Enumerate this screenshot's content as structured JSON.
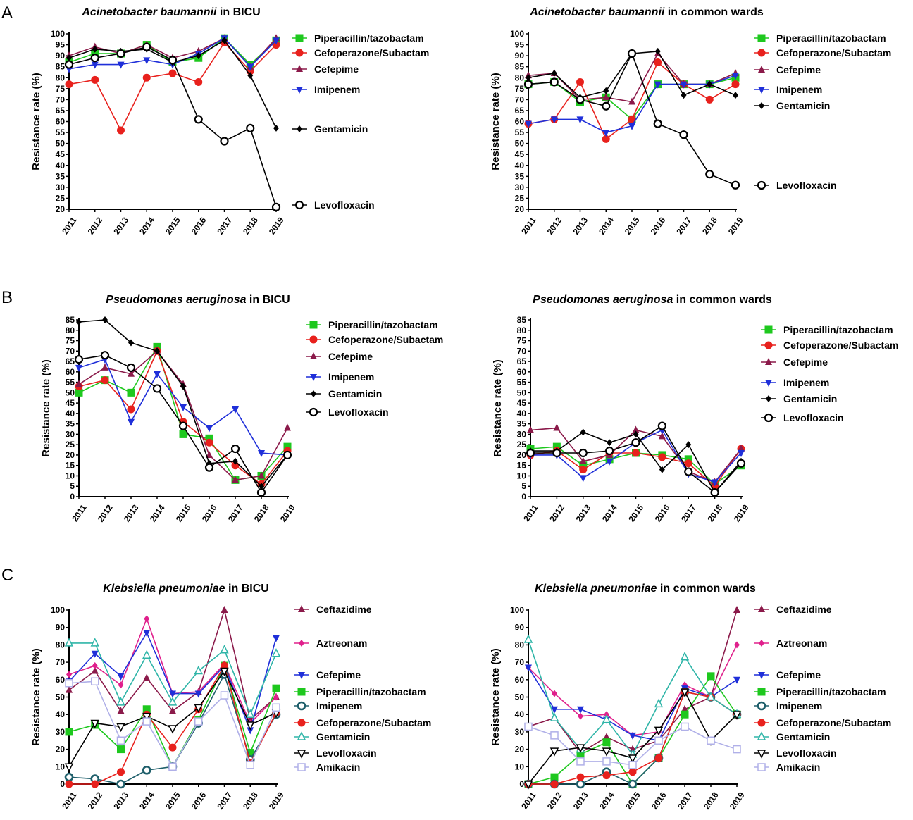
{
  "panel_labels": [
    "A",
    "B",
    "C"
  ],
  "chart_data": [
    {
      "type": "line",
      "panel": "A",
      "title_species": "Acinetobacter baumannii",
      "title_rest": " in BICU",
      "ylabel": "Resistance rate (%)",
      "ylim": [
        20,
        100
      ],
      "ytick_step": 5,
      "categories": [
        "2011",
        "2012",
        "2013",
        "2014",
        "2015",
        "2016",
        "2017",
        "2018",
        "2019"
      ],
      "series": [
        {
          "name": "Piperacillin/tazobactam",
          "color": "#1ec81e",
          "marker": "square",
          "values": [
            87,
            91,
            91,
            95,
            87,
            89,
            98,
            86,
            97
          ]
        },
        {
          "name": "Cefoperazone/Subactam",
          "color": "#e8211d",
          "marker": "circle",
          "values": [
            77,
            79,
            56,
            80,
            82,
            78,
            96,
            83,
            95
          ]
        },
        {
          "name": "Cefepime",
          "color": "#8b1a4a",
          "marker": "triangle-up",
          "values": [
            90,
            94,
            91,
            95,
            89,
            92,
            98,
            85,
            98
          ]
        },
        {
          "name": "Imipenem",
          "color": "#1f2fd9",
          "marker": "triangle-down",
          "values": [
            84,
            86,
            86,
            88,
            86,
            91,
            98,
            85,
            97
          ]
        },
        {
          "name": "Gentamicin",
          "color": "#000000",
          "marker": "diamond",
          "values": [
            89,
            93,
            92,
            93,
            87,
            90,
            97,
            81,
            57
          ]
        },
        {
          "name": "Levofloxacin",
          "color": "#000000",
          "marker": "open-circle",
          "values": [
            86,
            89,
            91,
            94,
            88,
            61,
            51,
            57,
            21
          ]
        }
      ]
    },
    {
      "type": "line",
      "panel": "A",
      "title_species": "Acinetobacter baumannii",
      "title_rest": " in common wards",
      "ylabel": "Resistance rate (%)",
      "ylim": [
        20,
        100
      ],
      "ytick_step": 5,
      "categories": [
        "2011",
        "2012",
        "2013",
        "2014",
        "2015",
        "2016",
        "2017",
        "2018",
        "2019"
      ],
      "series": [
        {
          "name": "Piperacillin/tazobactam",
          "color": "#1ec81e",
          "marker": "square",
          "values": [
            77,
            78,
            69,
            71,
            61,
            77,
            77,
            77,
            80
          ]
        },
        {
          "name": "Cefoperazone/Subactam",
          "color": "#e8211d",
          "marker": "circle",
          "values": [
            59,
            61,
            78,
            52,
            61,
            87,
            77,
            70,
            77
          ]
        },
        {
          "name": "Cefepime",
          "color": "#8b1a4a",
          "marker": "triangle-up",
          "values": [
            81,
            82,
            70,
            71,
            69,
            91,
            77,
            77,
            82
          ]
        },
        {
          "name": "Imipenem",
          "color": "#1f2fd9",
          "marker": "triangle-down",
          "values": [
            59,
            61,
            61,
            55,
            58,
            77,
            77,
            77,
            81
          ]
        },
        {
          "name": "Gentamicin",
          "color": "#000000",
          "marker": "diamond",
          "values": [
            80,
            82,
            71,
            74,
            91,
            92,
            72,
            77,
            72
          ]
        },
        {
          "name": "Levofloxacin",
          "color": "#000000",
          "marker": "open-circle",
          "values": [
            77,
            78,
            70,
            67,
            91,
            59,
            54,
            36,
            31
          ]
        }
      ]
    },
    {
      "type": "line",
      "panel": "B",
      "title_species": "Pseudomonas aeruginosa",
      "title_rest": " in BICU",
      "ylabel": "Resistance rate (%)",
      "ylim": [
        0,
        85
      ],
      "ytick_step": 5,
      "categories": [
        "2011",
        "2012",
        "2013",
        "2014",
        "2015",
        "2016",
        "2017",
        "2018",
        "2019"
      ],
      "series": [
        {
          "name": "Piperacillin/tazobactam",
          "color": "#1ec81e",
          "marker": "square",
          "values": [
            50,
            56,
            50,
            72,
            30,
            28,
            8,
            10,
            24
          ]
        },
        {
          "name": "Cefoperazone/Subactam",
          "color": "#e8211d",
          "marker": "circle",
          "values": [
            53,
            56,
            42,
            70,
            36,
            26,
            15,
            6,
            22
          ]
        },
        {
          "name": "Cefepime",
          "color": "#8b1a4a",
          "marker": "triangle-up",
          "values": [
            54,
            62,
            59,
            70,
            54,
            20,
            8,
            10,
            33
          ]
        },
        {
          "name": "Imipenem",
          "color": "#1f2fd9",
          "marker": "triangle-down",
          "values": [
            62,
            66,
            36,
            59,
            43,
            33,
            42,
            21,
            20
          ]
        },
        {
          "name": "Gentamicin",
          "color": "#000000",
          "marker": "diamond",
          "values": [
            84,
            85,
            74,
            70,
            53,
            16,
            17,
            5,
            20
          ]
        },
        {
          "name": "Levofloxacin",
          "color": "#000000",
          "marker": "open-circle",
          "values": [
            66,
            68,
            62,
            52,
            34,
            14,
            23,
            2,
            20
          ]
        }
      ]
    },
    {
      "type": "line",
      "panel": "B",
      "title_species": "Pseudomonas aeruginosa",
      "title_rest": " in common wards",
      "ylabel": "Resistance rate (%)",
      "ylim": [
        0,
        85
      ],
      "ytick_step": 5,
      "categories": [
        "2011",
        "2012",
        "2013",
        "2014",
        "2015",
        "2016",
        "2017",
        "2018",
        "2019"
      ],
      "series": [
        {
          "name": "Piperacillin/tazobactam",
          "color": "#1ec81e",
          "marker": "square",
          "values": [
            23,
            24,
            15,
            18,
            21,
            20,
            18,
            6,
            15
          ]
        },
        {
          "name": "Cefoperazone/Subactam",
          "color": "#e8211d",
          "marker": "circle",
          "values": [
            20,
            22,
            13,
            21,
            21,
            19,
            16,
            5,
            23
          ]
        },
        {
          "name": "Cefepime",
          "color": "#8b1a4a",
          "marker": "triangle-up",
          "values": [
            32,
            33,
            17,
            20,
            32,
            29,
            12,
            7,
            23
          ]
        },
        {
          "name": "Imipenem",
          "color": "#1f2fd9",
          "marker": "triangle-down",
          "values": [
            20,
            20,
            9,
            17,
            26,
            32,
            11,
            7,
            21
          ]
        },
        {
          "name": "Gentamicin",
          "color": "#000000",
          "marker": "diamond",
          "values": [
            22,
            22,
            31,
            26,
            30,
            13,
            25,
            2,
            17
          ]
        },
        {
          "name": "Levofloxacin",
          "color": "#000000",
          "marker": "open-circle",
          "values": [
            21,
            21,
            21,
            22,
            26,
            34,
            12,
            2,
            16
          ]
        }
      ]
    },
    {
      "type": "line",
      "panel": "C",
      "title_species": "Klebsiella pneumoniae",
      "title_rest": " in BICU",
      "ylabel": "Resistance rate (%)",
      "ylim": [
        0,
        100
      ],
      "ytick_step": 10,
      "categories": [
        "2011",
        "2012",
        "2013",
        "2014",
        "2015",
        "2016",
        "2017",
        "2018",
        "2019"
      ],
      "series": [
        {
          "name": "Ceftazidime",
          "color": "#8b1a4a",
          "marker": "triangle-up",
          "values": [
            54,
            65,
            42,
            61,
            42,
            53,
            100,
            37,
            50
          ]
        },
        {
          "name": "Aztreonam",
          "color": "#e0208c",
          "marker": "diamond",
          "values": [
            63,
            68,
            57,
            95,
            52,
            53,
            69,
            35,
            50
          ]
        },
        {
          "name": "Cefepime",
          "color": "#1f2fd9",
          "marker": "triangle-down",
          "values": [
            59,
            75,
            62,
            87,
            52,
            52,
            68,
            31,
            84
          ]
        },
        {
          "name": "Piperacillin/tazobactam",
          "color": "#1ec81e",
          "marker": "square",
          "values": [
            30,
            34,
            20,
            43,
            10,
            37,
            68,
            18,
            55
          ]
        },
        {
          "name": "Imipenem",
          "color": "#1f5f6b",
          "marker": "open-circle-thick",
          "values": [
            4,
            3,
            0,
            8,
            10,
            35,
            63,
            14,
            40
          ]
        },
        {
          "name": "Cefoperazone/Subactam",
          "color": "#e8211d",
          "marker": "circle",
          "values": [
            0,
            0,
            7,
            40,
            21,
            43,
            68,
            12,
            41
          ]
        },
        {
          "name": "Gentamicin",
          "color": "#2fb5a8",
          "marker": "open-triangle-up",
          "values": [
            81,
            81,
            47,
            74,
            47,
            65,
            77,
            40,
            75
          ]
        },
        {
          "name": "Levofloxacin",
          "color": "#000000",
          "marker": "open-triangle-down",
          "values": [
            10,
            35,
            33,
            39,
            32,
            44,
            65,
            34,
            41
          ]
        },
        {
          "name": "Amikacin",
          "color": "#b0b0e8",
          "marker": "open-square",
          "values": [
            58,
            59,
            25,
            36,
            10,
            36,
            51,
            11,
            44
          ]
        }
      ]
    },
    {
      "type": "line",
      "panel": "C",
      "title_species": "Klebsiella pneumoniae",
      "title_rest": " in common wards",
      "ylabel": "Resistance rate (%)",
      "ylim": [
        0,
        100
      ],
      "ytick_step": 10,
      "categories": [
        "2011",
        "2012",
        "2013",
        "2014",
        "2015",
        "2016",
        "2017",
        "2018",
        "2019"
      ],
      "series": [
        {
          "name": "Ceftazidime",
          "color": "#8b1a4a",
          "marker": "triangle-up",
          "values": [
            33,
            38,
            18,
            27,
            20,
            25,
            43,
            50,
            100
          ]
        },
        {
          "name": "Aztreonam",
          "color": "#e0208c",
          "marker": "diamond",
          "values": [
            67,
            52,
            39,
            40,
            28,
            30,
            57,
            50,
            80
          ]
        },
        {
          "name": "Cefepime",
          "color": "#1f2fd9",
          "marker": "triangle-down",
          "values": [
            67,
            43,
            43,
            37,
            28,
            25,
            55,
            50,
            60
          ]
        },
        {
          "name": "Piperacillin/tazobactam",
          "color": "#1ec81e",
          "marker": "square",
          "values": [
            0,
            4,
            17,
            24,
            0,
            15,
            40,
            62,
            40
          ]
        },
        {
          "name": "Imipenem",
          "color": "#1f5f6b",
          "marker": "open-circle-thick",
          "values": [
            0,
            0,
            0,
            7,
            0,
            15,
            53,
            50,
            40
          ]
        },
        {
          "name": "Cefoperazone/Subactam",
          "color": "#e8211d",
          "marker": "circle",
          "values": [
            0,
            0,
            4,
            5,
            7,
            15,
            53,
            50,
            40
          ]
        },
        {
          "name": "Gentamicin",
          "color": "#2fb5a8",
          "marker": "open-triangle-up",
          "values": [
            83,
            38,
            20,
            37,
            17,
            46,
            73,
            50,
            40
          ]
        },
        {
          "name": "Levofloxacin",
          "color": "#000000",
          "marker": "open-triangle-down",
          "values": [
            0,
            19,
            21,
            19,
            15,
            31,
            53,
            25,
            40
          ]
        },
        {
          "name": "Amikacin",
          "color": "#b0b0e8",
          "marker": "open-square",
          "values": [
            33,
            28,
            13,
            13,
            11,
            25,
            33,
            25,
            20
          ]
        }
      ]
    }
  ]
}
